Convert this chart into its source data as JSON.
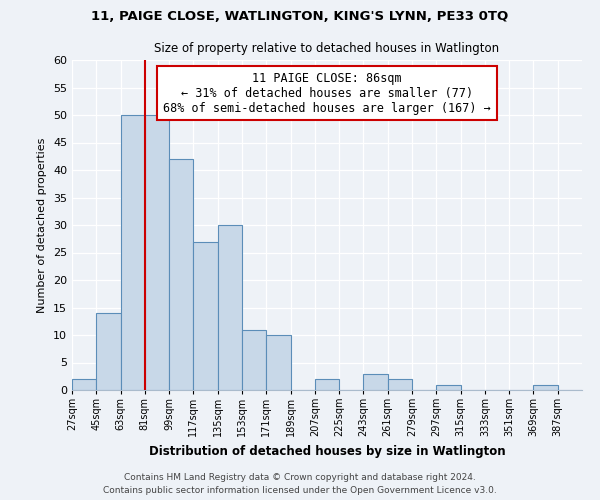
{
  "title1": "11, PAIGE CLOSE, WATLINGTON, KING'S LYNN, PE33 0TQ",
  "title2": "Size of property relative to detached houses in Watlington",
  "xlabel": "Distribution of detached houses by size in Watlington",
  "ylabel": "Number of detached properties",
  "bin_edges": [
    27,
    45,
    63,
    81,
    99,
    117,
    135,
    153,
    171,
    189,
    207,
    225,
    243,
    261,
    279,
    297,
    315,
    333,
    351,
    369,
    387,
    405
  ],
  "bin_labels": [
    "27sqm",
    "45sqm",
    "63sqm",
    "81sqm",
    "99sqm",
    "117sqm",
    "135sqm",
    "153sqm",
    "171sqm",
    "189sqm",
    "207sqm",
    "225sqm",
    "243sqm",
    "261sqm",
    "279sqm",
    "297sqm",
    "315sqm",
    "333sqm",
    "351sqm",
    "369sqm",
    "387sqm"
  ],
  "counts": [
    2,
    14,
    50,
    50,
    42,
    27,
    30,
    11,
    10,
    0,
    2,
    0,
    3,
    2,
    0,
    1,
    0,
    0,
    0,
    1,
    0
  ],
  "bar_color": "#c8d8e8",
  "bar_edge_color": "#5b8db8",
  "property_line_x": 81,
  "property_line_color": "#cc0000",
  "annotation_line1": "11 PAIGE CLOSE: 86sqm",
  "annotation_line2": "← 31% of detached houses are smaller (77)",
  "annotation_line3": "68% of semi-detached houses are larger (167) →",
  "annotation_box_color": "#ffffff",
  "annotation_box_edge": "#cc0000",
  "ylim": [
    0,
    60
  ],
  "yticks": [
    0,
    5,
    10,
    15,
    20,
    25,
    30,
    35,
    40,
    45,
    50,
    55,
    60
  ],
  "footer1": "Contains HM Land Registry data © Crown copyright and database right 2024.",
  "footer2": "Contains public sector information licensed under the Open Government Licence v3.0.",
  "bg_color": "#eef2f7",
  "grid_color": "#ffffff",
  "spine_color": "#aabbcc"
}
